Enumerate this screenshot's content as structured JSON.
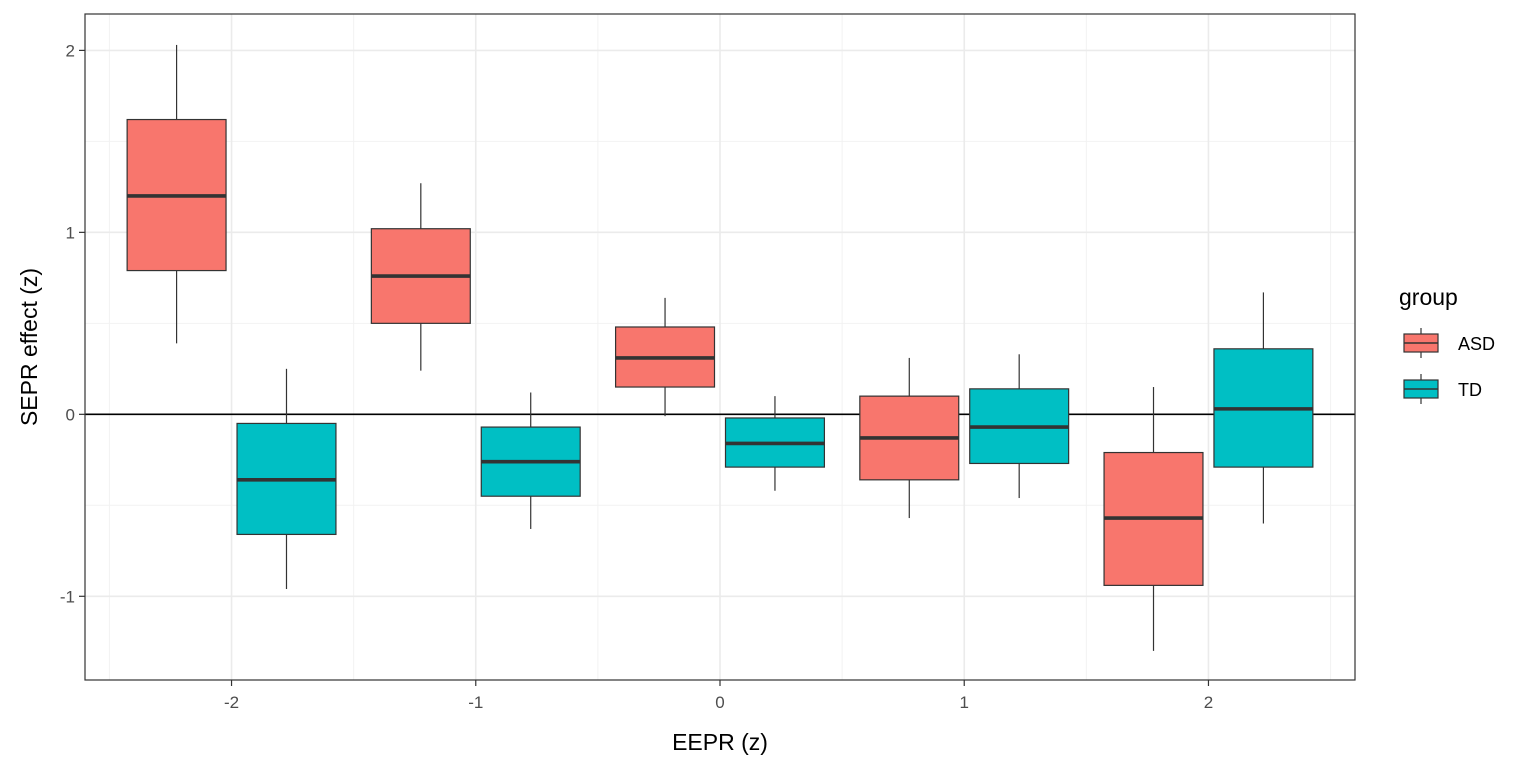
{
  "chart_data": {
    "type": "boxplot",
    "title": "",
    "xlabel": "EEPR (z)",
    "ylabel": "SEPR effect (z)",
    "xlim": [
      -2.6,
      2.6
    ],
    "ylim": [
      -1.46,
      2.2
    ],
    "x_ticks": [
      -2,
      -1,
      0,
      1,
      2
    ],
    "x_tick_labels": [
      "-2",
      "-1",
      "0",
      "1",
      "2"
    ],
    "y_ticks": [
      -1,
      0,
      1,
      2
    ],
    "y_tick_labels": [
      "-1",
      "0",
      "1",
      "2"
    ],
    "grid": true,
    "reference_line_y": 0,
    "dodge_width": 0.45,
    "legend": {
      "title": "group",
      "position": "right",
      "entries": [
        {
          "name": "ASD",
          "color": "#F8766D"
        },
        {
          "name": "TD",
          "color": "#00BFC4"
        }
      ]
    },
    "series": [
      {
        "name": "ASD",
        "color": "#F8766D",
        "boxes": [
          {
            "x": -2,
            "whisker_low": 0.39,
            "q1": 0.79,
            "median": 1.2,
            "q3": 1.62,
            "whisker_high": 2.03
          },
          {
            "x": -1,
            "whisker_low": 0.24,
            "q1": 0.5,
            "median": 0.76,
            "q3": 1.02,
            "whisker_high": 1.27
          },
          {
            "x": 0,
            "whisker_low": -0.01,
            "q1": 0.15,
            "median": 0.31,
            "q3": 0.48,
            "whisker_high": 0.64
          },
          {
            "x": 1,
            "whisker_low": -0.57,
            "q1": -0.36,
            "median": -0.13,
            "q3": 0.1,
            "whisker_high": 0.31
          },
          {
            "x": 2,
            "whisker_low": -1.3,
            "q1": -0.94,
            "median": -0.57,
            "q3": -0.21,
            "whisker_high": 0.15
          }
        ]
      },
      {
        "name": "TD",
        "color": "#00BFC4",
        "boxes": [
          {
            "x": -2,
            "whisker_low": -0.96,
            "q1": -0.66,
            "median": -0.36,
            "q3": -0.05,
            "whisker_high": 0.25
          },
          {
            "x": -1,
            "whisker_low": -0.63,
            "q1": -0.45,
            "median": -0.26,
            "q3": -0.07,
            "whisker_high": 0.12
          },
          {
            "x": 0,
            "whisker_low": -0.42,
            "q1": -0.29,
            "median": -0.16,
            "q3": -0.02,
            "whisker_high": 0.1
          },
          {
            "x": 1,
            "whisker_low": -0.46,
            "q1": -0.27,
            "median": -0.07,
            "q3": 0.14,
            "whisker_high": 0.33
          },
          {
            "x": 2,
            "whisker_low": -0.6,
            "q1": -0.29,
            "median": 0.03,
            "q3": 0.36,
            "whisker_high": 0.67
          }
        ]
      }
    ]
  }
}
